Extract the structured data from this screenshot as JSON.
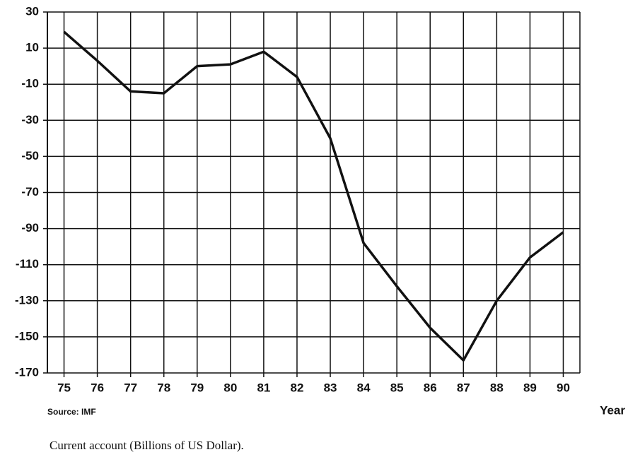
{
  "chart_data": {
    "type": "line",
    "x": [
      75,
      76,
      77,
      78,
      79,
      80,
      81,
      82,
      83,
      84,
      85,
      86,
      87,
      88,
      89,
      90
    ],
    "values": [
      19,
      3,
      -14,
      -15,
      0,
      1,
      8,
      -6,
      -40,
      -98,
      -122,
      -145,
      -163,
      -130,
      -106,
      -92
    ],
    "color": "#111111",
    "xlim": [
      74.5,
      90.5
    ],
    "xticks": [
      75,
      76,
      77,
      78,
      79,
      80,
      81,
      82,
      83,
      84,
      85,
      86,
      87,
      88,
      89,
      90
    ],
    "ylim": [
      -170,
      30
    ],
    "yticks": [
      -170,
      -150,
      -130,
      -110,
      -90,
      -70,
      -50,
      -30,
      -10,
      10,
      30
    ],
    "grid": true,
    "x_label": "Year",
    "source": "Source: IMF",
    "caption": "Current account (Billions of US Dollar)."
  }
}
